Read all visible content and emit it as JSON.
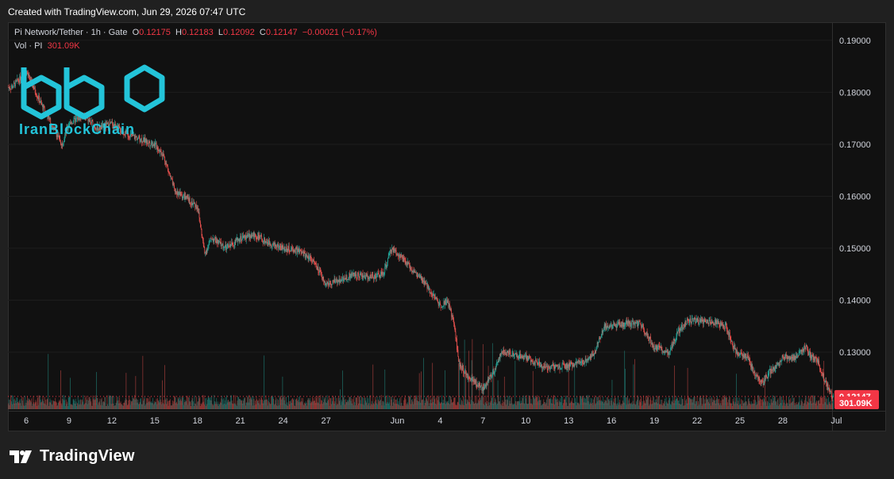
{
  "header": {
    "created_text": "Created with TradingView.com, Jun 29, 2026 07:47 UTC"
  },
  "legend": {
    "symbol": "Pi Network/Tether · 1h · Gate",
    "o_label": "O",
    "o_value": "0.12175",
    "h_label": "H",
    "h_value": "0.12183",
    "l_label": "L",
    "l_value": "0.12092",
    "c_label": "C",
    "c_value": "0.12147",
    "change": "−0.00021 (−0.17%)"
  },
  "volume_legend": {
    "label": "Vol · PI",
    "value": "301.09K"
  },
  "watermark": {
    "text": "IranBlockChain"
  },
  "footer": {
    "brand": "TradingView"
  },
  "colors": {
    "up": "#26a69a",
    "down": "#ef5350",
    "price_tag": "#f23645",
    "watermark": "#23c4d9"
  },
  "chart_data": {
    "type": "candlestick",
    "pair": "Pi Network/Tether",
    "interval": "1h",
    "exchange": "Gate",
    "y_ticks": [
      "0.19000",
      "0.18000",
      "0.17000",
      "0.16000",
      "0.15000",
      "0.14000",
      "0.13000",
      "0.12000"
    ],
    "ylim": [
      0.1187,
      0.1935
    ],
    "x_ticks": [
      "6",
      "9",
      "12",
      "15",
      "18",
      "21",
      "24",
      "27",
      "Jun",
      "4",
      "7",
      "10",
      "13",
      "16",
      "19",
      "22",
      "25",
      "28",
      "Jul"
    ],
    "last_price": "0.12147",
    "last_volume": "301.09K",
    "close_series": [
      {
        "day": 5.0,
        "close": 0.181
      },
      {
        "day": 6.0,
        "close": 0.184
      },
      {
        "day": 7.0,
        "close": 0.178
      },
      {
        "day": 8.5,
        "close": 0.17
      },
      {
        "day": 9.0,
        "close": 0.174
      },
      {
        "day": 10.0,
        "close": 0.1755
      },
      {
        "day": 11.0,
        "close": 0.173
      },
      {
        "day": 12.0,
        "close": 0.174
      },
      {
        "day": 13.0,
        "close": 0.172
      },
      {
        "day": 14.0,
        "close": 0.171
      },
      {
        "day": 15.0,
        "close": 0.17
      },
      {
        "day": 15.6,
        "close": 0.168
      },
      {
        "day": 16.4,
        "close": 0.161
      },
      {
        "day": 17.0,
        "close": 0.16
      },
      {
        "day": 18.0,
        "close": 0.158
      },
      {
        "day": 18.5,
        "close": 0.149
      },
      {
        "day": 19.0,
        "close": 0.152
      },
      {
        "day": 20.0,
        "close": 0.15
      },
      {
        "day": 21.0,
        "close": 0.152
      },
      {
        "day": 22.0,
        "close": 0.1525
      },
      {
        "day": 23.0,
        "close": 0.151
      },
      {
        "day": 24.0,
        "close": 0.15
      },
      {
        "day": 25.0,
        "close": 0.1495
      },
      {
        "day": 26.0,
        "close": 0.148
      },
      {
        "day": 27.0,
        "close": 0.143
      },
      {
        "day": 28.0,
        "close": 0.144
      },
      {
        "day": 29.0,
        "close": 0.145
      },
      {
        "day": 30.0,
        "close": 0.1445
      },
      {
        "day": 31.0,
        "close": 0.145
      },
      {
        "day": 31.6,
        "close": 0.15
      },
      {
        "day": 32.0,
        "close": 0.149
      },
      {
        "day": 33.0,
        "close": 0.146
      },
      {
        "day": 34.0,
        "close": 0.143
      },
      {
        "day": 35.0,
        "close": 0.139
      },
      {
        "day": 35.5,
        "close": 0.14
      },
      {
        "day": 36.0,
        "close": 0.135
      },
      {
        "day": 36.3,
        "close": 0.128
      },
      {
        "day": 37.0,
        "close": 0.125
      },
      {
        "day": 38.0,
        "close": 0.123
      },
      {
        "day": 38.7,
        "close": 0.126
      },
      {
        "day": 39.3,
        "close": 0.13
      },
      {
        "day": 40.0,
        "close": 0.1295
      },
      {
        "day": 41.0,
        "close": 0.129
      },
      {
        "day": 42.0,
        "close": 0.1275
      },
      {
        "day": 43.0,
        "close": 0.127
      },
      {
        "day": 44.0,
        "close": 0.1275
      },
      {
        "day": 45.0,
        "close": 0.128
      },
      {
        "day": 45.8,
        "close": 0.13
      },
      {
        "day": 46.5,
        "close": 0.135
      },
      {
        "day": 47.0,
        "close": 0.135
      },
      {
        "day": 48.0,
        "close": 0.1355
      },
      {
        "day": 49.0,
        "close": 0.1355
      },
      {
        "day": 50.0,
        "close": 0.131
      },
      {
        "day": 51.0,
        "close": 0.13
      },
      {
        "day": 51.7,
        "close": 0.134
      },
      {
        "day": 52.3,
        "close": 0.136
      },
      {
        "day": 53.0,
        "close": 0.136
      },
      {
        "day": 54.0,
        "close": 0.136
      },
      {
        "day": 55.0,
        "close": 0.135
      },
      {
        "day": 55.7,
        "close": 0.13
      },
      {
        "day": 56.5,
        "close": 0.129
      },
      {
        "day": 57.0,
        "close": 0.126
      },
      {
        "day": 57.6,
        "close": 0.124
      },
      {
        "day": 58.0,
        "close": 0.126
      },
      {
        "day": 58.5,
        "close": 0.127
      },
      {
        "day": 59.0,
        "close": 0.129
      },
      {
        "day": 60.0,
        "close": 0.129
      },
      {
        "day": 60.6,
        "close": 0.131
      },
      {
        "day": 61.0,
        "close": 0.129
      },
      {
        "day": 61.5,
        "close": 0.128
      },
      {
        "day": 62.0,
        "close": 0.124
      },
      {
        "day": 62.5,
        "close": 0.1215
      }
    ]
  }
}
